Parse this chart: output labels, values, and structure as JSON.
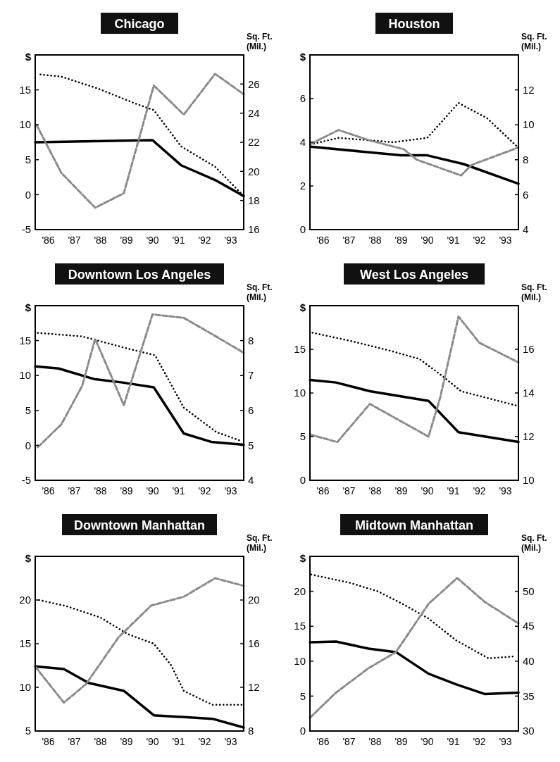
{
  "chart_data": [
    {
      "type": "line",
      "title": "Chicago",
      "ylabel": "$",
      "y2label": "Sq. Ft. (Mil.)",
      "xlim": [
        1985.5,
        1993.5
      ],
      "xticks": [
        {
          "value": 1986,
          "label": "'86"
        },
        {
          "value": 1987,
          "label": "'87"
        },
        {
          "value": 1988,
          "label": "'88"
        },
        {
          "value": 1989,
          "label": "'89"
        },
        {
          "value": 1990,
          "label": "'90"
        },
        {
          "value": 1991,
          "label": "'91"
        },
        {
          "value": 1992,
          "label": "'92"
        },
        {
          "value": 1993,
          "label": "'93"
        }
      ],
      "ylim": [
        -5,
        20
      ],
      "yticks": [
        -5,
        0,
        5,
        10,
        15
      ],
      "y2lim": [
        16,
        28
      ],
      "y2ticks": [
        16,
        18,
        20,
        22,
        24,
        26
      ],
      "marker": "none",
      "series": [
        {
          "color": "#000000",
          "line_style": "solid",
          "x": [
            1985.5,
            1990,
            1991.1,
            1992.4,
            1993.5
          ],
          "values": [
            7.5,
            7.8,
            4.2,
            2.1,
            -0.2
          ]
        },
        {
          "color": "#000000",
          "line_style": "dotted",
          "x": [
            1985.7,
            1986.5,
            1987.9,
            1989.3,
            1990.05,
            1991.1,
            1992.4,
            1993.5
          ],
          "values": [
            17.2,
            16.9,
            15.2,
            13.1,
            12.1,
            6.9,
            4,
            -0.2
          ]
        },
        {
          "color": "#8a8a8a",
          "line_style": "dashed",
          "axis": "y2",
          "x": [
            1985.55,
            1986.5,
            1987.8,
            1988.9,
            1990.05,
            1991.2,
            1992.4,
            1993.5
          ],
          "values": [
            23.2,
            19.9,
            17.5,
            18.5,
            25.9,
            23.9,
            26.7,
            25.3
          ]
        }
      ]
    },
    {
      "type": "line",
      "title": "Houston",
      "ylabel": "$",
      "y2label": "Sq. Ft. (Mil.)",
      "xlim": [
        1985.5,
        1993.5
      ],
      "xticks": [
        {
          "value": 1986,
          "label": "'86"
        },
        {
          "value": 1987,
          "label": "'87"
        },
        {
          "value": 1988,
          "label": "'88"
        },
        {
          "value": 1989,
          "label": "'89"
        },
        {
          "value": 1990,
          "label": "'90"
        },
        {
          "value": 1991,
          "label": "'91"
        },
        {
          "value": 1992,
          "label": "'92"
        },
        {
          "value": 1993,
          "label": "'93"
        }
      ],
      "ylim": [
        0,
        8
      ],
      "yticks": [
        0,
        2,
        4,
        6
      ],
      "y2lim": [
        4,
        14
      ],
      "y2ticks": [
        4,
        6,
        8,
        10,
        12
      ],
      "marker": "none",
      "series": [
        {
          "color": "#000000",
          "line_style": "solid",
          "x": [
            1985.52,
            1989.0,
            1990.0,
            1991.4,
            1993.5
          ],
          "values": [
            3.8,
            3.4,
            3.4,
            3.0,
            2.1
          ]
        },
        {
          "color": "#000000",
          "line_style": "dotted",
          "x": [
            1985.52,
            1986.6,
            1987.7,
            1988.7,
            1990.0,
            1991.2,
            1992.3,
            1993.45
          ],
          "values": [
            3.9,
            4.2,
            4.1,
            4.0,
            4.2,
            5.8,
            5.1,
            3.8
          ]
        },
        {
          "color": "#8a8a8a",
          "line_style": "dashed",
          "axis": "y2",
          "x": [
            1985.52,
            1986.6,
            1987.8,
            1989.1,
            1989.6,
            1991.3,
            1991.7,
            1993.5
          ],
          "values": [
            8.9,
            9.7,
            9.1,
            8.6,
            8.0,
            7.1,
            7.7,
            8.7
          ]
        }
      ]
    },
    {
      "type": "line",
      "title": "Downtown Los Angeles",
      "ylabel": "$",
      "y2label": "Sq. Ft. (Mil.)",
      "xlim": [
        1985.5,
        1993.5
      ],
      "xticks": [
        {
          "value": 1986,
          "label": "'86"
        },
        {
          "value": 1987,
          "label": "'87"
        },
        {
          "value": 1988,
          "label": "'88"
        },
        {
          "value": 1989,
          "label": "'89"
        },
        {
          "value": 1990,
          "label": "'90"
        },
        {
          "value": 1991,
          "label": "'91"
        },
        {
          "value": 1992,
          "label": "'92"
        },
        {
          "value": 1993,
          "label": "'93"
        }
      ],
      "ylim": [
        -5,
        20
      ],
      "yticks": [
        -5,
        0,
        5,
        10,
        15
      ],
      "y2lim": [
        4,
        9
      ],
      "y2ticks": [
        4,
        5,
        6,
        7,
        8
      ],
      "marker": "none",
      "series": [
        {
          "color": "#000000",
          "line_style": "solid",
          "x": [
            1985.5,
            1986.4,
            1987.75,
            1988.85,
            1990.05,
            1991.2,
            1992.25,
            1993.5
          ],
          "values": [
            11.3,
            11.0,
            9.5,
            9.0,
            8.3,
            1.7,
            0.5,
            0.1
          ]
        },
        {
          "color": "#000000",
          "line_style": "dotted",
          "x": [
            1985.6,
            1987.3,
            1989.1,
            1990.1,
            1991.2,
            1992.45,
            1993.35
          ],
          "values": [
            16.1,
            15.6,
            13.8,
            12.9,
            5.4,
            1.9,
            0.7
          ]
        },
        {
          "color": "#8a8a8a",
          "line_style": "dashed",
          "axis": "y2",
          "x": [
            1985.6,
            1986.5,
            1987.3,
            1987.8,
            1988.9,
            1990.0,
            1991.2,
            1992.25,
            1993.5
          ],
          "values": [
            4.95,
            5.6,
            6.7,
            8.05,
            6.15,
            8.75,
            8.65,
            8.2,
            7.65
          ]
        }
      ]
    },
    {
      "type": "line",
      "title": "West Los Angeles",
      "ylabel": "$",
      "y2label": "Sq. Ft. (Mil.)",
      "xlim": [
        1985.5,
        1993.5
      ],
      "xticks": [
        {
          "value": 1986,
          "label": "'86"
        },
        {
          "value": 1987,
          "label": "'87"
        },
        {
          "value": 1988,
          "label": "'88"
        },
        {
          "value": 1989,
          "label": "'89"
        },
        {
          "value": 1990,
          "label": "'90"
        },
        {
          "value": 1991,
          "label": "'91"
        },
        {
          "value": 1992,
          "label": "'92"
        },
        {
          "value": 1993,
          "label": "'93"
        }
      ],
      "ylim": [
        0,
        20
      ],
      "yticks": [
        0,
        5,
        10,
        15
      ],
      "y2lim": [
        10,
        18
      ],
      "y2ticks": [
        10,
        12,
        14,
        16
      ],
      "marker": "none",
      "series": [
        {
          "color": "#000000",
          "line_style": "solid",
          "x": [
            1985.5,
            1986.5,
            1987.8,
            1990.05,
            1991.2,
            1993.5
          ],
          "values": [
            11.5,
            11.2,
            10.2,
            9.1,
            5.5,
            4.4
          ]
        },
        {
          "color": "#000000",
          "line_style": "dotted",
          "x": [
            1985.6,
            1987.0,
            1988.5,
            1989.7,
            1990.6,
            1991.3,
            1993.5
          ],
          "values": [
            16.9,
            16.0,
            14.9,
            13.9,
            11.9,
            10.2,
            8.5
          ]
        },
        {
          "color": "#8a8a8a",
          "line_style": "dashed",
          "axis": "y2",
          "x": [
            1985.5,
            1986.55,
            1987.8,
            1990.05,
            1990.5,
            1991.2,
            1992.0,
            1993.5
          ],
          "values": [
            12.1,
            11.75,
            13.5,
            12.0,
            13.8,
            17.5,
            16.3,
            15.4
          ]
        }
      ]
    },
    {
      "type": "line",
      "title": "Downtown Manhattan",
      "ylabel": "$",
      "y2label": "Sq. Ft. (Mil.)",
      "xlim": [
        1985.5,
        1993.5
      ],
      "xticks": [
        {
          "value": 1986,
          "label": "'86"
        },
        {
          "value": 1987,
          "label": "'87"
        },
        {
          "value": 1988,
          "label": "'88"
        },
        {
          "value": 1989,
          "label": "'89"
        },
        {
          "value": 1990,
          "label": "'90"
        },
        {
          "value": 1991,
          "label": "'91"
        },
        {
          "value": 1992,
          "label": "'92"
        },
        {
          "value": 1993,
          "label": "'93"
        }
      ],
      "ylim": [
        5,
        25
      ],
      "yticks": [
        5,
        10,
        15,
        20
      ],
      "y2lim": [
        8,
        24
      ],
      "y2ticks": [
        8,
        12,
        16,
        20
      ],
      "marker": "none",
      "series": [
        {
          "color": "#000000",
          "line_style": "solid",
          "x": [
            1985.5,
            1986.6,
            1987.55,
            1988.9,
            1990.05,
            1992.3,
            1993.5
          ],
          "values": [
            12.4,
            12.1,
            10.5,
            9.6,
            6.8,
            6.4,
            5.4
          ]
        },
        {
          "color": "#000000",
          "line_style": "dotted",
          "x": [
            1985.65,
            1986.7,
            1988.0,
            1989.05,
            1990.05,
            1990.7,
            1991.2,
            1992.3,
            1993.45
          ],
          "values": [
            20,
            19.3,
            18,
            16.1,
            15.0,
            12.6,
            9.6,
            8.0,
            8.0
          ]
        },
        {
          "color": "#8a8a8a",
          "line_style": "dashed",
          "axis": "y2",
          "x": [
            1985.5,
            1986.6,
            1987.45,
            1988.7,
            1989.95,
            1991.2,
            1992.4,
            1993.5
          ],
          "values": [
            13.9,
            10.6,
            12.3,
            16.6,
            19.5,
            20.3,
            22.0,
            21.3
          ]
        }
      ]
    },
    {
      "type": "line",
      "title": "Midtown Manhattan",
      "ylabel": "$",
      "y2label": "Sq. Ft. (Mil.)",
      "xlim": [
        1985.5,
        1993.5
      ],
      "xticks": [
        {
          "value": 1986,
          "label": "'86"
        },
        {
          "value": 1987,
          "label": "'87"
        },
        {
          "value": 1988,
          "label": "'88"
        },
        {
          "value": 1989,
          "label": "'89"
        },
        {
          "value": 1990,
          "label": "'90"
        },
        {
          "value": 1991,
          "label": "'91"
        },
        {
          "value": 1992,
          "label": "'92"
        },
        {
          "value": 1993,
          "label": "'93"
        }
      ],
      "ylim": [
        0,
        25
      ],
      "yticks": [
        0,
        5,
        10,
        15,
        20
      ],
      "y2lim": [
        30,
        55
      ],
      "y2ticks": [
        30,
        35,
        40,
        45,
        50
      ],
      "marker": "none",
      "series": [
        {
          "color": "#000000",
          "line_style": "solid",
          "x": [
            1985.5,
            1986.5,
            1987.75,
            1988.8,
            1990.05,
            1991.1,
            1992.2,
            1993.5
          ],
          "values": [
            12.7,
            12.8,
            11.8,
            11.3,
            8.2,
            6.7,
            5.3,
            5.5
          ]
        },
        {
          "color": "#000000",
          "line_style": "dotted",
          "x": [
            1985.55,
            1987.05,
            1988.1,
            1989.0,
            1990.05,
            1991.1,
            1992.35,
            1993.4
          ],
          "values": [
            22.4,
            21.2,
            20,
            18.3,
            16.1,
            13.0,
            10.4,
            10.7
          ]
        },
        {
          "color": "#8a8a8a",
          "line_style": "dashed",
          "axis": "y2",
          "x": [
            1985.5,
            1986.5,
            1987.75,
            1988.8,
            1990.05,
            1991.15,
            1992.2,
            1993.5
          ],
          "values": [
            31.9,
            35.5,
            39.0,
            41.3,
            48.2,
            51.9,
            48.5,
            45.4
          ]
        }
      ]
    }
  ]
}
